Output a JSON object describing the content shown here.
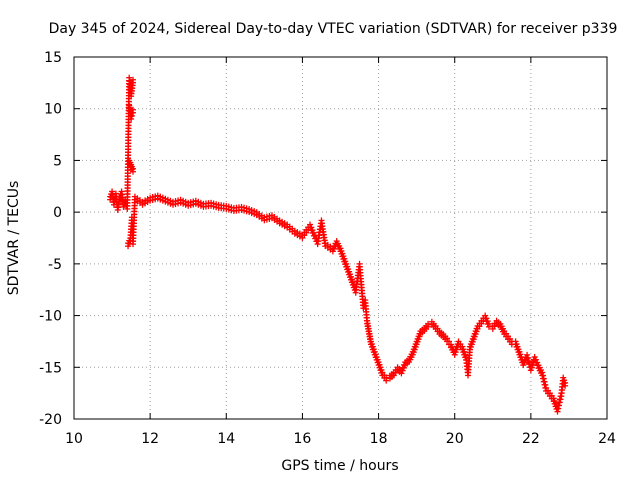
{
  "chart_data": {
    "type": "scatter",
    "title": "Day 345 of 2024, Sidereal Day-to-day VTEC variation (SDTVAR) for receiver p339",
    "xlabel": "GPS time / hours",
    "ylabel": "SDTVAR / TECUs",
    "xlim": [
      10,
      24
    ],
    "ylim": [
      -20,
      15
    ],
    "xticks": [
      "10",
      "12",
      "14",
      "16",
      "18",
      "20",
      "22",
      "24"
    ],
    "yticks": [
      "15",
      "10",
      "5",
      "0",
      "-5",
      "-10",
      "-15",
      "-20"
    ],
    "grid": true,
    "marker": "plus",
    "series": [
      {
        "name": "SDTVAR",
        "color": "#ff0000",
        "x": [
          10.95,
          11.0,
          11.05,
          11.1,
          11.15,
          11.2,
          11.25,
          11.3,
          11.35,
          11.4,
          11.45,
          11.48,
          11.5,
          11.52,
          11.55,
          11.45,
          11.48,
          11.5,
          11.52,
          11.55,
          11.45,
          11.48,
          11.5,
          11.52,
          11.55,
          11.42,
          11.48,
          11.52,
          11.55,
          11.6,
          11.8,
          12.0,
          12.2,
          12.4,
          12.6,
          12.8,
          13.0,
          13.2,
          13.4,
          13.6,
          13.8,
          14.0,
          14.2,
          14.4,
          14.6,
          14.8,
          15.0,
          15.2,
          15.4,
          15.6,
          15.8,
          16.0,
          16.2,
          16.4,
          16.5,
          16.6,
          16.8,
          16.9,
          17.0,
          17.1,
          17.2,
          17.3,
          17.4,
          17.5,
          17.6,
          17.65,
          17.7,
          17.75,
          17.8,
          17.9,
          18.0,
          18.1,
          18.2,
          18.3,
          18.4,
          18.5,
          18.6,
          18.7,
          18.8,
          18.9,
          19.0,
          19.1,
          19.2,
          19.3,
          19.4,
          19.5,
          19.6,
          19.7,
          19.8,
          19.9,
          20.0,
          20.1,
          20.2,
          20.3,
          20.35,
          20.4,
          20.5,
          20.6,
          20.7,
          20.8,
          20.9,
          21.0,
          21.1,
          21.2,
          21.3,
          21.4,
          21.5,
          21.6,
          21.7,
          21.8,
          21.9,
          22.0,
          22.1,
          22.2,
          22.3,
          22.4,
          22.5,
          22.6,
          22.7,
          22.8,
          22.85,
          22.9
        ],
        "y": [
          1.5,
          2.0,
          1.0,
          1.8,
          0.5,
          1.5,
          2.0,
          0.8,
          1.2,
          0.6,
          13.0,
          12.3,
          11.5,
          12.0,
          12.8,
          10.3,
          9.8,
          9.3,
          9.6,
          9.9,
          5.0,
          4.8,
          4.6,
          4.4,
          4.2,
          -3.0,
          -2.5,
          -0.5,
          -2.8,
          1.5,
          1.0,
          1.4,
          1.6,
          1.3,
          1.0,
          1.2,
          0.9,
          1.1,
          0.8,
          0.9,
          0.7,
          0.6,
          0.4,
          0.5,
          0.3,
          0.0,
          -0.5,
          -0.3,
          -0.8,
          -1.2,
          -1.8,
          -2.2,
          -1.2,
          -2.8,
          -0.8,
          -3.0,
          -3.5,
          -2.8,
          -3.5,
          -4.5,
          -5.5,
          -6.5,
          -7.5,
          -5.0,
          -9.0,
          -8.5,
          -10.5,
          -11.5,
          -12.5,
          -13.5,
          -14.5,
          -15.5,
          -16.0,
          -15.8,
          -15.5,
          -15.0,
          -15.3,
          -14.5,
          -14.2,
          -13.5,
          -12.5,
          -11.5,
          -11.2,
          -10.8,
          -10.6,
          -11.0,
          -11.5,
          -11.8,
          -12.2,
          -12.8,
          -13.5,
          -12.5,
          -13.0,
          -14.0,
          -15.5,
          -13.0,
          -12.0,
          -11.0,
          -10.5,
          -10.0,
          -10.8,
          -11.0,
          -10.5,
          -10.8,
          -11.5,
          -12.0,
          -12.5,
          -12.5,
          -13.5,
          -14.5,
          -13.8,
          -15.0,
          -14.0,
          -14.8,
          -15.5,
          -17.0,
          -17.5,
          -18.0,
          -19.0,
          -17.5,
          -16.0,
          -16.5
        ]
      }
    ]
  }
}
